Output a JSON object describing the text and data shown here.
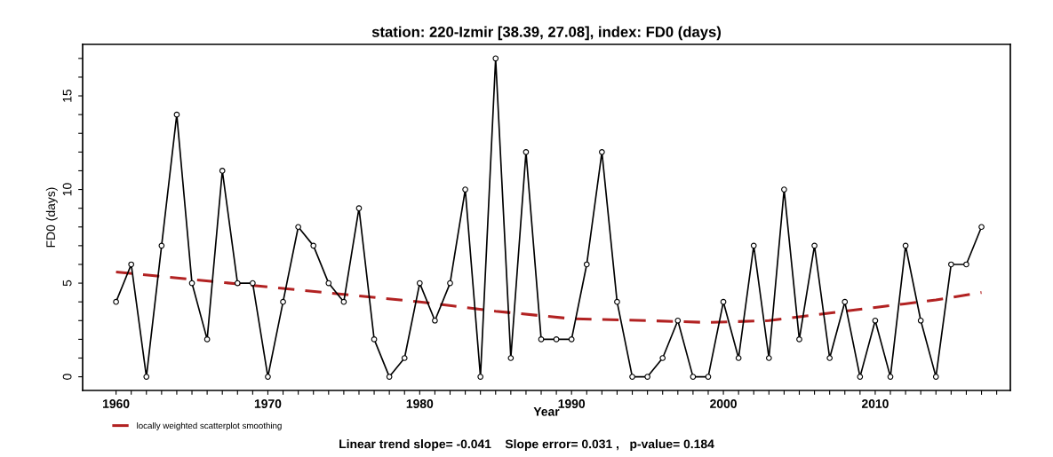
{
  "chart_data": {
    "type": "line",
    "title": "station: 220-Izmir [38.39, 27.08], index: FD0 (days)",
    "xlabel": "Year",
    "ylabel": "FD0 (days)",
    "x": [
      1960,
      1961,
      1962,
      1963,
      1964,
      1965,
      1966,
      1967,
      1968,
      1969,
      1970,
      1971,
      1972,
      1973,
      1974,
      1975,
      1976,
      1977,
      1978,
      1979,
      1980,
      1981,
      1982,
      1983,
      1984,
      1985,
      1986,
      1987,
      1988,
      1989,
      1990,
      1991,
      1992,
      1993,
      1994,
      1995,
      1996,
      1997,
      1998,
      1999,
      2000,
      2001,
      2002,
      2003,
      2004,
      2005,
      2006,
      2007,
      2008,
      2009,
      2010,
      2011,
      2012,
      2013,
      2014,
      2015,
      2016,
      2017
    ],
    "series": [
      {
        "color": "#000000",
        "marker": "circle",
        "line_style": "solid",
        "values": [
          4,
          6,
          0,
          7,
          14,
          5,
          2,
          11,
          5,
          5,
          0,
          4,
          8,
          7,
          5,
          4,
          9,
          2,
          0,
          1,
          5,
          3,
          5,
          10,
          0,
          17,
          1,
          12,
          2,
          2,
          2,
          6,
          12,
          4,
          0,
          0,
          1,
          3,
          0,
          0,
          4,
          1,
          7,
          1,
          10,
          2,
          7,
          1,
          4,
          0,
          3,
          0,
          7,
          3,
          0,
          6,
          6,
          8
        ]
      },
      {
        "name": "locally weighted scatterplot smoothing",
        "color": "#b22222",
        "marker": "none",
        "line_style": "dashed",
        "x": [
          1960,
          1965,
          1970,
          1975,
          1980,
          1985,
          1990,
          1995,
          1999,
          2003,
          2006,
          2010,
          2014,
          2017
        ],
        "values": [
          5.6,
          5.2,
          4.8,
          4.4,
          4.0,
          3.5,
          3.1,
          3.0,
          2.9,
          3.0,
          3.3,
          3.7,
          4.1,
          4.5
        ]
      }
    ],
    "xlim": [
      1957.8,
      2018.9
    ],
    "ylim": [
      -0.73,
      17.75
    ],
    "xticks": [
      1960,
      {
        "value": 1961,
        "label": null
      },
      {
        "value": 1962,
        "label": null
      },
      {
        "value": 1963,
        "label": null
      },
      {
        "value": 1964,
        "label": null
      },
      {
        "value": 1965,
        "label": null
      },
      {
        "value": 1966,
        "label": null
      },
      {
        "value": 1967,
        "label": null
      },
      {
        "value": 1968,
        "label": null
      },
      {
        "value": 1969,
        "label": null
      },
      1970,
      {
        "value": 1971,
        "label": null
      },
      {
        "value": 1972,
        "label": null
      },
      {
        "value": 1973,
        "label": null
      },
      {
        "value": 1974,
        "label": null
      },
      {
        "value": 1975,
        "label": null
      },
      {
        "value": 1976,
        "label": null
      },
      {
        "value": 1977,
        "label": null
      },
      {
        "value": 1978,
        "label": null
      },
      {
        "value": 1979,
        "label": null
      },
      1980,
      {
        "value": 1981,
        "label": null
      },
      {
        "value": 1982,
        "label": null
      },
      {
        "value": 1983,
        "label": null
      },
      {
        "value": 1984,
        "label": null
      },
      {
        "value": 1985,
        "label": null
      },
      {
        "value": 1986,
        "label": null
      },
      {
        "value": 1987,
        "label": null
      },
      {
        "value": 1988,
        "label": null
      },
      {
        "value": 1989,
        "label": null
      },
      1990,
      {
        "value": 1991,
        "label": null
      },
      {
        "value": 1992,
        "label": null
      },
      {
        "value": 1993,
        "label": null
      },
      {
        "value": 1994,
        "label": null
      },
      {
        "value": 1995,
        "label": null
      },
      {
        "value": 1996,
        "label": null
      },
      {
        "value": 1997,
        "label": null
      },
      {
        "value": 1998,
        "label": null
      },
      {
        "value": 1999,
        "label": null
      },
      2000,
      {
        "value": 2001,
        "label": null
      },
      {
        "value": 2002,
        "label": null
      },
      {
        "value": 2003,
        "label": null
      },
      {
        "value": 2004,
        "label": null
      },
      {
        "value": 2005,
        "label": null
      },
      {
        "value": 2006,
        "label": null
      },
      {
        "value": 2007,
        "label": null
      },
      {
        "value": 2008,
        "label": null
      },
      {
        "value": 2009,
        "label": null
      },
      2010,
      {
        "value": 2011,
        "label": null
      },
      {
        "value": 2012,
        "label": null
      },
      {
        "value": 2013,
        "label": null
      },
      {
        "value": 2014,
        "label": null
      },
      {
        "value": 2015,
        "label": null
      },
      {
        "value": 2016,
        "label": null
      },
      {
        "value": 2017,
        "label": null
      },
      {
        "value": 2018,
        "label": null
      }
    ],
    "yticks": [
      0,
      {
        "value": 1,
        "label": null
      },
      {
        "value": 2,
        "label": null
      },
      {
        "value": 3,
        "label": null
      },
      {
        "value": 4,
        "label": null
      },
      5,
      {
        "value": 6,
        "label": null
      },
      {
        "value": 7,
        "label": null
      },
      {
        "value": 8,
        "label": null
      },
      {
        "value": 9,
        "label": null
      },
      10,
      {
        "value": 11,
        "label": null
      },
      {
        "value": 12,
        "label": null
      },
      {
        "value": 13,
        "label": null
      },
      {
        "value": 14,
        "label": null
      },
      15,
      {
        "value": 16,
        "label": null
      },
      {
        "value": 17,
        "label": null
      }
    ],
    "grid": false,
    "legend": "bottom left",
    "annotations": [
      "Linear trend slope= -0.041    Slope error= 0.031 ,   p-value= 0.184"
    ]
  }
}
